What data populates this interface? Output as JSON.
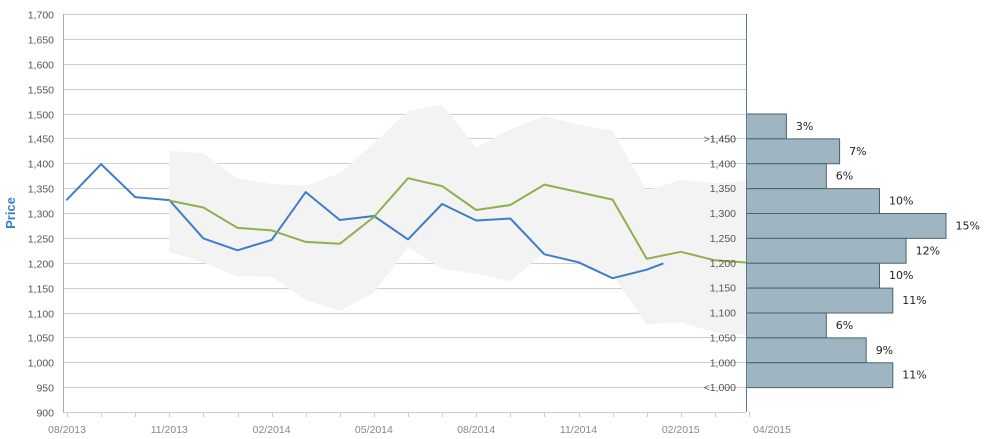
{
  "chart_data": {
    "type": "line",
    "ylabel": "Price",
    "xlabel": "",
    "title": "",
    "ylim": [
      900,
      1700
    ],
    "yticks": [
      900,
      950,
      1000,
      1050,
      1100,
      1150,
      1200,
      1250,
      1300,
      1350,
      1400,
      1450,
      1500,
      1550,
      1600,
      1650,
      1700
    ],
    "ytick_labels": [
      "900",
      "950",
      "1,000",
      "1,050",
      "1,100",
      "1,150",
      "1,200",
      "1,250",
      "1,300",
      "1,350",
      "1,400",
      "1,450",
      "1,500",
      "1,550",
      "1,600",
      "1,650",
      "1,700"
    ],
    "x_tick_labels": [
      "08/2013",
      "11/2013",
      "02/2014",
      "05/2014",
      "08/2014",
      "11/2014",
      "02/2015",
      "04/2015"
    ],
    "grid": true,
    "colors": {
      "actual": "#3d7ec8",
      "forecast": "#8fb04e",
      "band": "#f3f3f3",
      "hist_fill": "#9fb5c2",
      "hist_stroke": "#4a6372",
      "axis": "#5a7d8c",
      "ylabel": "#3d7ec8"
    },
    "series": [
      {
        "key": "actual",
        "x": [
          "2013-08",
          "2013-09",
          "2013-10",
          "2013-11",
          "2013-12",
          "2014-01",
          "2014-02",
          "2014-03",
          "2014-04",
          "2014-05",
          "2014-06",
          "2014-07",
          "2014-08",
          "2014-09",
          "2014-10",
          "2014-11",
          "2014-12",
          "2015-01",
          "2015-01-15"
        ],
        "y": [
          1327,
          1398,
          1332,
          1326,
          1249,
          1225,
          1246,
          1342,
          1286,
          1294,
          1247,
          1318,
          1285,
          1289,
          1217,
          1201,
          1169,
          1186,
          1198
        ]
      },
      {
        "key": "forecast",
        "x": [
          "2013-11",
          "2013-12",
          "2014-01",
          "2014-02",
          "2014-03",
          "2014-04",
          "2014-05",
          "2014-06",
          "2014-07",
          "2014-08",
          "2014-09",
          "2014-10",
          "2014-11",
          "2014-12",
          "2015-01",
          "2015-02",
          "2015-03",
          "2015-04"
        ],
        "y": [
          1325,
          1311,
          1270,
          1265,
          1242,
          1238,
          1292,
          1370,
          1354,
          1306,
          1316,
          1357,
          1342,
          1327,
          1208,
          1222,
          1205,
          1200
        ]
      }
    ],
    "band": {
      "x": [
        "2013-11",
        "2013-12",
        "2014-01",
        "2014-02",
        "2014-03",
        "2014-04",
        "2014-05",
        "2014-06",
        "2014-07",
        "2014-08",
        "2014-09",
        "2014-10",
        "2014-11",
        "2014-12",
        "2015-01",
        "2015-02",
        "2015-03",
        "2015-04"
      ],
      "upper": [
        1425,
        1420,
        1370,
        1358,
        1355,
        1380,
        1440,
        1505,
        1518,
        1432,
        1468,
        1495,
        1478,
        1465,
        1345,
        1367,
        1360,
        1365
      ],
      "lower": [
        1222,
        1200,
        1173,
        1172,
        1125,
        1103,
        1140,
        1230,
        1188,
        1178,
        1163,
        1220,
        1200,
        1175,
        1076,
        1080,
        1060,
        1055
      ]
    },
    "histogram": {
      "buckets": [
        ">1,450",
        "1,450",
        "1,400",
        "1,350",
        "1,300",
        "1,250",
        "1,200",
        "1,150",
        "1,100",
        "1,050",
        "1,000",
        "<1,000"
      ],
      "percent_labels": [
        "3%",
        "7%",
        "6%",
        "10%",
        "15%",
        "12%",
        "10%",
        "11%",
        "6%",
        "9%",
        "11%"
      ],
      "values": [
        3,
        7,
        6,
        10,
        15,
        12,
        10,
        11,
        6,
        9,
        11
      ]
    }
  }
}
